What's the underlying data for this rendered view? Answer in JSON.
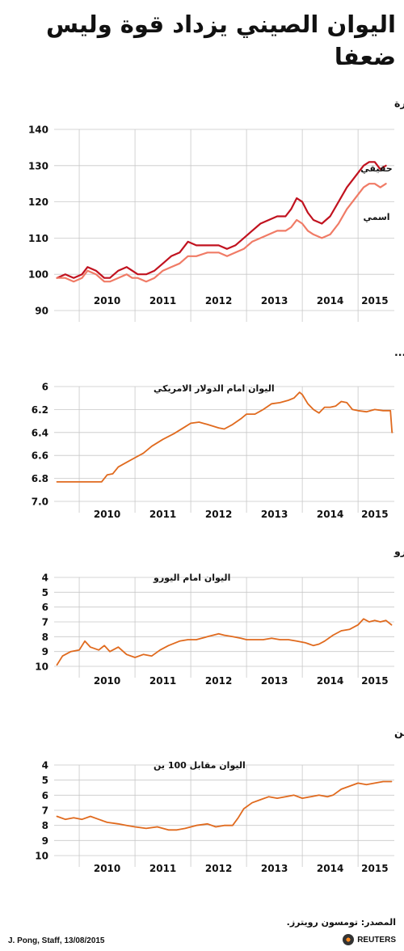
{
  "title": "اليوان الصيني يزداد قوة وليس ضعفا",
  "footer": {
    "source": "المصدر: تومسون رويترز.",
    "credit": "J. Pong, Staff, 13/08/2015",
    "logo": "REUTERS"
  },
  "chart_data": [
    {
      "type": "line",
      "title": "مؤشر اليوان المرجح للتجارة",
      "x_categories": [
        "2010",
        "2011",
        "2012",
        "2013",
        "2014",
        "2015"
      ],
      "ylim": [
        90,
        140
      ],
      "y_ticks": [
        140,
        130,
        120,
        110,
        100,
        90
      ],
      "inverted": false,
      "grid": true,
      "series": [
        {
          "name": "حقيقي",
          "color": "#c1121f",
          "points": [
            [
              2009.6,
              99
            ],
            [
              2009.75,
              100
            ],
            [
              2009.9,
              99
            ],
            [
              2010.05,
              100
            ],
            [
              2010.15,
              102
            ],
            [
              2010.3,
              101
            ],
            [
              2010.45,
              99
            ],
            [
              2010.55,
              99
            ],
            [
              2010.7,
              101
            ],
            [
              2010.85,
              102
            ],
            [
              2010.95,
              101
            ],
            [
              2011.05,
              100
            ],
            [
              2011.2,
              100
            ],
            [
              2011.35,
              101
            ],
            [
              2011.5,
              103
            ],
            [
              2011.65,
              105
            ],
            [
              2011.8,
              106
            ],
            [
              2011.95,
              109
            ],
            [
              2012.1,
              108
            ],
            [
              2012.3,
              108
            ],
            [
              2012.5,
              108
            ],
            [
              2012.65,
              107
            ],
            [
              2012.8,
              108
            ],
            [
              2012.95,
              110
            ],
            [
              2013.1,
              112
            ],
            [
              2013.25,
              114
            ],
            [
              2013.4,
              115
            ],
            [
              2013.55,
              116
            ],
            [
              2013.7,
              116
            ],
            [
              2013.8,
              118
            ],
            [
              2013.9,
              121
            ],
            [
              2014.0,
              120
            ],
            [
              2014.1,
              117
            ],
            [
              2014.2,
              115
            ],
            [
              2014.35,
              114
            ],
            [
              2014.5,
              116
            ],
            [
              2014.65,
              120
            ],
            [
              2014.8,
              124
            ],
            [
              2014.95,
              127
            ],
            [
              2015.1,
              130
            ],
            [
              2015.2,
              131
            ],
            [
              2015.3,
              131
            ],
            [
              2015.4,
              129
            ],
            [
              2015.5,
              130
            ]
          ]
        },
        {
          "name": "اسمي",
          "color": "#f07b66",
          "points": [
            [
              2009.6,
              99
            ],
            [
              2009.75,
              99
            ],
            [
              2009.9,
              98
            ],
            [
              2010.05,
              99
            ],
            [
              2010.15,
              101
            ],
            [
              2010.3,
              100
            ],
            [
              2010.45,
              98
            ],
            [
              2010.55,
              98
            ],
            [
              2010.7,
              99
            ],
            [
              2010.85,
              100
            ],
            [
              2010.95,
              99
            ],
            [
              2011.05,
              99
            ],
            [
              2011.2,
              98
            ],
            [
              2011.35,
              99
            ],
            [
              2011.5,
              101
            ],
            [
              2011.65,
              102
            ],
            [
              2011.8,
              103
            ],
            [
              2011.95,
              105
            ],
            [
              2012.1,
              105
            ],
            [
              2012.3,
              106
            ],
            [
              2012.5,
              106
            ],
            [
              2012.65,
              105
            ],
            [
              2012.8,
              106
            ],
            [
              2012.95,
              107
            ],
            [
              2013.1,
              109
            ],
            [
              2013.25,
              110
            ],
            [
              2013.4,
              111
            ],
            [
              2013.55,
              112
            ],
            [
              2013.7,
              112
            ],
            [
              2013.8,
              113
            ],
            [
              2013.9,
              115
            ],
            [
              2014.0,
              114
            ],
            [
              2014.1,
              112
            ],
            [
              2014.2,
              111
            ],
            [
              2014.35,
              110
            ],
            [
              2014.5,
              111
            ],
            [
              2014.65,
              114
            ],
            [
              2014.8,
              118
            ],
            [
              2014.95,
              121
            ],
            [
              2015.1,
              124
            ],
            [
              2015.2,
              125
            ],
            [
              2015.3,
              125
            ],
            [
              2015.4,
              124
            ],
            [
              2015.5,
              125
            ]
          ]
        }
      ]
    },
    {
      "type": "line",
      "title": "اليوان عندما يكون اضعف بشكل طفيف امام الدولار...",
      "inner_label": "اليوان امام الدولار الامريكي",
      "x_categories": [
        "2010",
        "2011",
        "2012",
        "2013",
        "2014",
        "2015"
      ],
      "ylim": [
        6.0,
        7.0
      ],
      "y_ticks": [
        "6",
        "6.2",
        "6.4",
        "6.6",
        "6.8",
        "7.0"
      ],
      "inverted": true,
      "grid": true,
      "series": [
        {
          "name": "",
          "color": "#e06a1e",
          "points": [
            [
              2009.6,
              6.83
            ],
            [
              2010.4,
              6.83
            ],
            [
              2010.5,
              6.77
            ],
            [
              2010.6,
              6.76
            ],
            [
              2010.7,
              6.7
            ],
            [
              2010.85,
              6.66
            ],
            [
              2011.0,
              6.62
            ],
            [
              2011.15,
              6.58
            ],
            [
              2011.3,
              6.52
            ],
            [
              2011.5,
              6.46
            ],
            [
              2011.7,
              6.41
            ],
            [
              2011.9,
              6.35
            ],
            [
              2012.0,
              6.32
            ],
            [
              2012.15,
              6.31
            ],
            [
              2012.3,
              6.33
            ],
            [
              2012.5,
              6.36
            ],
            [
              2012.6,
              6.37
            ],
            [
              2012.75,
              6.33
            ],
            [
              2012.9,
              6.28
            ],
            [
              2013.0,
              6.24
            ],
            [
              2013.15,
              6.24
            ],
            [
              2013.3,
              6.2
            ],
            [
              2013.45,
              6.15
            ],
            [
              2013.6,
              6.14
            ],
            [
              2013.75,
              6.12
            ],
            [
              2013.85,
              6.1
            ],
            [
              2013.95,
              6.05
            ],
            [
              2014.0,
              6.07
            ],
            [
              2014.1,
              6.15
            ],
            [
              2014.2,
              6.2
            ],
            [
              2014.3,
              6.23
            ],
            [
              2014.4,
              6.18
            ],
            [
              2014.5,
              6.18
            ],
            [
              2014.6,
              6.17
            ],
            [
              2014.7,
              6.13
            ],
            [
              2014.8,
              6.14
            ],
            [
              2014.9,
              6.2
            ],
            [
              2015.0,
              6.21
            ],
            [
              2015.15,
              6.22
            ],
            [
              2015.3,
              6.2
            ],
            [
              2015.45,
              6.21
            ],
            [
              2015.58,
              6.21
            ],
            [
              2015.61,
              6.4
            ]
          ]
        }
      ]
    },
    {
      "type": "line",
      "title": "... يزداد قوة أمام اليورو",
      "inner_label": "اليوان امام اليورو",
      "x_categories": [
        "2010",
        "2011",
        "2012",
        "2013",
        "2014",
        "2015"
      ],
      "ylim": [
        4,
        10
      ],
      "y_ticks": [
        4,
        5,
        6,
        7,
        8,
        9,
        10
      ],
      "inverted": true,
      "grid": true,
      "series": [
        {
          "name": "",
          "color": "#e06a1e",
          "points": [
            [
              2009.6,
              9.9
            ],
            [
              2009.7,
              9.3
            ],
            [
              2009.85,
              9.0
            ],
            [
              2010.0,
              8.9
            ],
            [
              2010.1,
              8.3
            ],
            [
              2010.2,
              8.7
            ],
            [
              2010.35,
              8.9
            ],
            [
              2010.45,
              8.6
            ],
            [
              2010.55,
              9.0
            ],
            [
              2010.7,
              8.7
            ],
            [
              2010.85,
              9.2
            ],
            [
              2011.0,
              9.4
            ],
            [
              2011.15,
              9.2
            ],
            [
              2011.3,
              9.3
            ],
            [
              2011.45,
              8.9
            ],
            [
              2011.6,
              8.6
            ],
            [
              2011.8,
              8.3
            ],
            [
              2011.95,
              8.2
            ],
            [
              2012.1,
              8.2
            ],
            [
              2012.3,
              8.0
            ],
            [
              2012.5,
              7.8
            ],
            [
              2012.6,
              7.9
            ],
            [
              2012.75,
              8.0
            ],
            [
              2012.9,
              8.1
            ],
            [
              2013.0,
              8.2
            ],
            [
              2013.15,
              8.2
            ],
            [
              2013.3,
              8.2
            ],
            [
              2013.45,
              8.1
            ],
            [
              2013.6,
              8.2
            ],
            [
              2013.75,
              8.2
            ],
            [
              2013.9,
              8.3
            ],
            [
              2014.05,
              8.4
            ],
            [
              2014.2,
              8.6
            ],
            [
              2014.3,
              8.5
            ],
            [
              2014.4,
              8.3
            ],
            [
              2014.55,
              7.9
            ],
            [
              2014.7,
              7.6
            ],
            [
              2014.85,
              7.5
            ],
            [
              2015.0,
              7.2
            ],
            [
              2015.1,
              6.8
            ],
            [
              2015.2,
              7.0
            ],
            [
              2015.3,
              6.9
            ],
            [
              2015.4,
              7.0
            ],
            [
              2015.5,
              6.9
            ],
            [
              2015.6,
              7.2
            ]
          ]
        }
      ]
    },
    {
      "type": "line",
      "title": "... والين",
      "inner_label": "اليوان مقابل 100 ين",
      "x_categories": [
        "2010",
        "2011",
        "2012",
        "2013",
        "2014",
        "2015"
      ],
      "ylim": [
        4,
        10
      ],
      "y_ticks": [
        4,
        5,
        6,
        7,
        8,
        9,
        10
      ],
      "inverted": true,
      "grid": true,
      "series": [
        {
          "name": "",
          "color": "#e06a1e",
          "points": [
            [
              2009.6,
              7.4
            ],
            [
              2009.75,
              7.6
            ],
            [
              2009.9,
              7.5
            ],
            [
              2010.05,
              7.6
            ],
            [
              2010.2,
              7.4
            ],
            [
              2010.35,
              7.6
            ],
            [
              2010.5,
              7.8
            ],
            [
              2010.7,
              7.9
            ],
            [
              2010.85,
              8.0
            ],
            [
              2011.0,
              8.1
            ],
            [
              2011.2,
              8.2
            ],
            [
              2011.4,
              8.1
            ],
            [
              2011.6,
              8.3
            ],
            [
              2011.75,
              8.3
            ],
            [
              2011.9,
              8.2
            ],
            [
              2012.1,
              8.0
            ],
            [
              2012.3,
              7.9
            ],
            [
              2012.45,
              8.1
            ],
            [
              2012.6,
              8.0
            ],
            [
              2012.75,
              8.0
            ],
            [
              2012.85,
              7.5
            ],
            [
              2012.95,
              6.9
            ],
            [
              2013.1,
              6.5
            ],
            [
              2013.25,
              6.3
            ],
            [
              2013.4,
              6.1
            ],
            [
              2013.55,
              6.2
            ],
            [
              2013.7,
              6.1
            ],
            [
              2013.85,
              6.0
            ],
            [
              2014.0,
              6.2
            ],
            [
              2014.15,
              6.1
            ],
            [
              2014.3,
              6.0
            ],
            [
              2014.45,
              6.1
            ],
            [
              2014.55,
              6.0
            ],
            [
              2014.7,
              5.6
            ],
            [
              2014.85,
              5.4
            ],
            [
              2015.0,
              5.2
            ],
            [
              2015.15,
              5.3
            ],
            [
              2015.3,
              5.2
            ],
            [
              2015.45,
              5.1
            ],
            [
              2015.6,
              5.1
            ]
          ]
        }
      ]
    }
  ]
}
